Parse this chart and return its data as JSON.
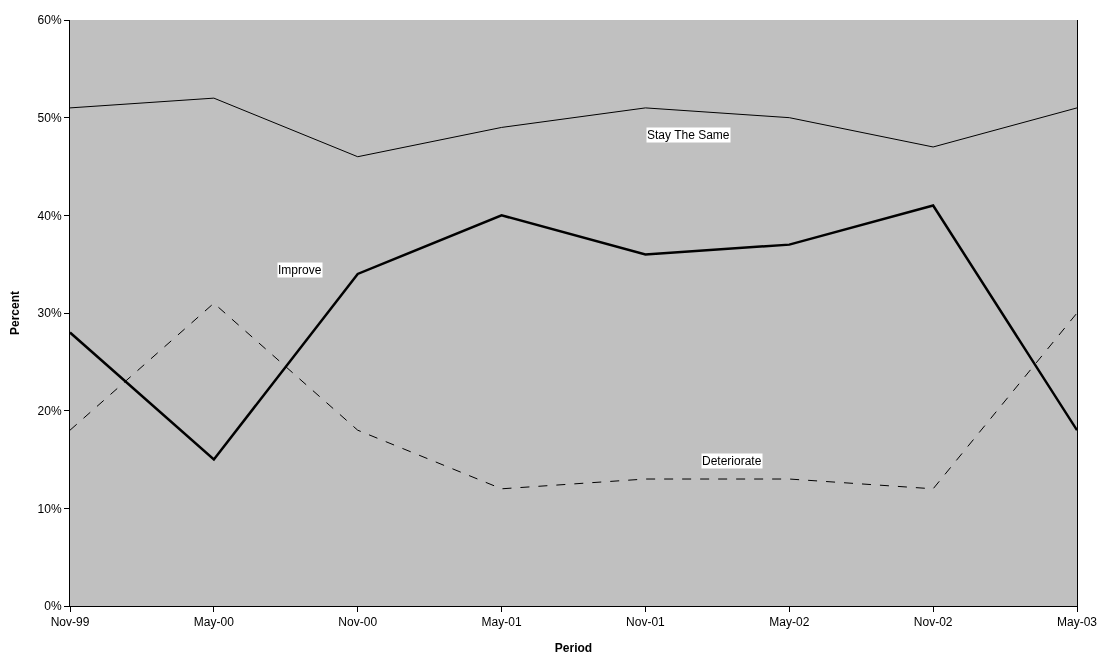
{
  "chart_data": {
    "type": "line",
    "xlabel": "Period",
    "ylabel": "Percent",
    "categories": [
      "Nov-99",
      "May-00",
      "Nov-00",
      "May-01",
      "Nov-01",
      "May-02",
      "Nov-02",
      "May-03"
    ],
    "series": [
      {
        "name": "Stay The Same",
        "color": "#000000",
        "line_style": "solid",
        "values": [
          51,
          52,
          46,
          49,
          51,
          50,
          47,
          51
        ]
      },
      {
        "name": "Improve",
        "color": "#000000",
        "line_style": "solid",
        "values": [
          28,
          15,
          34,
          40,
          36,
          37,
          41,
          18
        ]
      },
      {
        "name": "Deteriorate",
        "color": "#000000",
        "line_style": "dashed",
        "values": [
          18,
          31,
          18,
          12,
          13,
          13,
          12,
          30
        ]
      }
    ],
    "ylim": [
      0,
      60
    ],
    "yticks": [
      {
        "value": 0,
        "label": "0%"
      },
      {
        "value": 10,
        "label": "10%"
      },
      {
        "value": 20,
        "label": "20%"
      },
      {
        "value": 30,
        "label": "30%"
      },
      {
        "value": 40,
        "label": "40%"
      },
      {
        "value": 50,
        "label": "50%"
      },
      {
        "value": 60,
        "label": "60%"
      }
    ],
    "grid": false,
    "legend": false,
    "marker": "none"
  }
}
